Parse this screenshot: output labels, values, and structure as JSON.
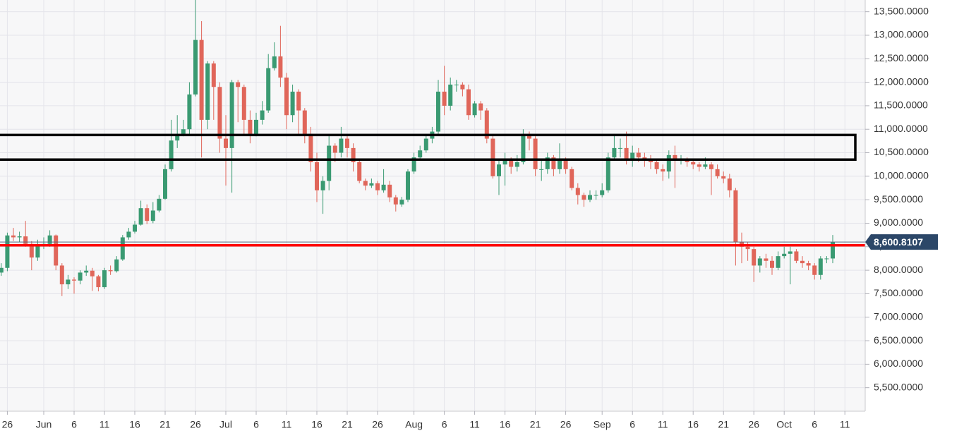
{
  "chart_data": {
    "type": "candlestick",
    "categories": [
      null,
      "26",
      null,
      null,
      null,
      null,
      null,
      "Jun",
      null,
      null,
      null,
      null,
      "6",
      null,
      null,
      null,
      null,
      "11",
      null,
      null,
      null,
      null,
      "16",
      null,
      null,
      null,
      null,
      "21",
      null,
      null,
      null,
      null,
      "26",
      null,
      null,
      null,
      null,
      "Jul",
      null,
      null,
      null,
      null,
      "6",
      null,
      null,
      null,
      null,
      "11",
      null,
      null,
      null,
      null,
      "16",
      null,
      null,
      null,
      null,
      "21",
      null,
      null,
      null,
      null,
      "26",
      null,
      null,
      null,
      null,
      null,
      "Aug",
      null,
      null,
      null,
      null,
      "6",
      null,
      null,
      null,
      null,
      "11",
      null,
      null,
      null,
      null,
      "16",
      null,
      null,
      null,
      null,
      "21",
      null,
      null,
      null,
      null,
      "26",
      null,
      null,
      null,
      null,
      null,
      "Sep",
      null,
      null,
      null,
      null,
      "6",
      null,
      null,
      null,
      null,
      "11",
      null,
      null,
      null,
      null,
      "16",
      null,
      null,
      null,
      null,
      "21",
      null,
      null,
      null,
      null,
      "26",
      null,
      null,
      null,
      null,
      "Oct",
      null,
      null,
      null,
      null,
      "6",
      null,
      null,
      null,
      null,
      "11"
    ],
    "open": [
      7950,
      8050,
      8740,
      8700,
      8720,
      8560,
      8270,
      8550,
      8560,
      8740,
      8100,
      7700,
      7800,
      7780,
      7950,
      7990,
      7870,
      7640,
      8000,
      7980,
      8230,
      8700,
      8820,
      8970,
      9320,
      9050,
      9270,
      9520,
      10150,
      10760,
      10900,
      11000,
      11740,
      12900,
      11200,
      12400,
      11900,
      10800,
      10600,
      12000,
      11900,
      11200,
      10900,
      11200,
      11400,
      12300,
      12550,
      12100,
      11300,
      11800,
      11400,
      10900,
      10300,
      9700,
      9900,
      10650,
      10500,
      10800,
      10600,
      10300,
      9900,
      9800,
      9850,
      9700,
      9820,
      9550,
      9400,
      9500,
      10100,
      10400,
      10550,
      10800,
      10950,
      11800,
      11500,
      11950,
      11950,
      11850,
      11300,
      11550,
      11400,
      10800,
      10000,
      10250,
      10350,
      10200,
      10300,
      10900,
      10800,
      10150,
      10150,
      10400,
      10150,
      10350,
      10150,
      9750,
      9600,
      9500,
      9600,
      9600,
      9700,
      10400,
      10600,
      10600,
      10350,
      10500,
      10400,
      10350,
      10300,
      10150,
      10100,
      10450,
      10350,
      10350,
      10300,
      10250,
      10200,
      10250,
      10150,
      10000,
      9950,
      9700,
      8600,
      8500,
      8450,
      8100,
      8250,
      8200,
      8050,
      8300,
      8350,
      8400,
      8200,
      8150,
      8100,
      7900,
      8250,
      8250,
      null,
      null
    ],
    "high": [
      8150,
      8800,
      8900,
      8820,
      9050,
      8620,
      8650,
      8700,
      8850,
      8760,
      8150,
      7900,
      7850,
      8000,
      8100,
      8050,
      7900,
      8050,
      8100,
      8300,
      8750,
      8900,
      9050,
      9480,
      9400,
      9450,
      9600,
      10250,
      11200,
      11300,
      11200,
      12000,
      13800,
      13300,
      12450,
      12450,
      12000,
      11300,
      12050,
      12050,
      11950,
      11400,
      11350,
      11600,
      12600,
      12850,
      13200,
      12200,
      11950,
      11850,
      11450,
      11050,
      10500,
      10000,
      10900,
      10700,
      11050,
      10900,
      10700,
      10350,
      9950,
      9950,
      9900,
      10150,
      9900,
      9600,
      9560,
      10150,
      10500,
      10650,
      10900,
      11050,
      12050,
      12350,
      12100,
      12050,
      12000,
      11950,
      11600,
      11600,
      11450,
      10900,
      10350,
      10500,
      10400,
      10450,
      11000,
      10950,
      10850,
      10350,
      10500,
      10450,
      10700,
      10400,
      10200,
      9850,
      9650,
      9700,
      9700,
      9850,
      10500,
      10900,
      10800,
      10950,
      10650,
      10600,
      10500,
      10450,
      10350,
      10250,
      10550,
      10650,
      10450,
      10400,
      10350,
      10300,
      10400,
      10300,
      10250,
      10100,
      10050,
      9750,
      8800,
      8600,
      8500,
      8300,
      8350,
      8300,
      8400,
      8500,
      8500,
      8450,
      8300,
      8200,
      8150,
      8300,
      8300,
      8750,
      null,
      null
    ],
    "low": [
      7880,
      7980,
      8620,
      8600,
      8500,
      8000,
      8200,
      8450,
      8500,
      8000,
      7450,
      7600,
      7500,
      7700,
      7880,
      7560,
      7550,
      7600,
      7900,
      7950,
      8200,
      8650,
      8780,
      8950,
      8980,
      9000,
      9230,
      9500,
      10100,
      10600,
      10850,
      10900,
      11700,
      10400,
      11000,
      11200,
      10500,
      9800,
      9650,
      11150,
      10900,
      10700,
      10850,
      11100,
      11350,
      12250,
      11900,
      11000,
      11150,
      10900,
      10700,
      10100,
      9450,
      9200,
      9700,
      10300,
      10400,
      10400,
      10100,
      9850,
      9700,
      9750,
      9600,
      9650,
      9450,
      9250,
      9350,
      9450,
      10050,
      10350,
      10500,
      10700,
      10900,
      11300,
      11400,
      11800,
      11700,
      11200,
      11250,
      11200,
      10700,
      9950,
      9600,
      9800,
      10050,
      10100,
      10250,
      10550,
      10000,
      9900,
      10050,
      10000,
      10050,
      10050,
      9700,
      9400,
      9350,
      9450,
      9500,
      9550,
      9650,
      10350,
      10400,
      10250,
      10200,
      10300,
      10200,
      10150,
      10050,
      9900,
      9950,
      9750,
      10250,
      10200,
      10150,
      10100,
      10150,
      9600,
      9950,
      9850,
      9550,
      8100,
      8150,
      8200,
      7750,
      7950,
      8050,
      7900,
      8000,
      8250,
      7700,
      8150,
      8050,
      8000,
      7800,
      7800,
      8150,
      8150,
      null,
      null
    ],
    "close": [
      8050,
      8740,
      8700,
      8720,
      8560,
      8270,
      8550,
      8560,
      8740,
      8100,
      7700,
      7800,
      7780,
      7950,
      7990,
      7870,
      7640,
      8000,
      7980,
      8230,
      8700,
      8820,
      8970,
      9320,
      9050,
      9270,
      9520,
      10150,
      10760,
      10900,
      11000,
      11740,
      12900,
      11200,
      12400,
      11900,
      10800,
      10600,
      12000,
      11900,
      11200,
      10900,
      11200,
      11400,
      12300,
      12550,
      12100,
      11300,
      11800,
      11400,
      10900,
      10300,
      9700,
      9900,
      10650,
      10500,
      10800,
      10600,
      10300,
      9900,
      9800,
      9850,
      9700,
      9820,
      9550,
      9400,
      9500,
      10100,
      10400,
      10550,
      10800,
      10950,
      11800,
      11500,
      11950,
      11950,
      11850,
      11300,
      11550,
      11400,
      10800,
      10000,
      10250,
      10350,
      10200,
      10300,
      10900,
      10800,
      10150,
      10150,
      10400,
      10150,
      10350,
      10150,
      9750,
      9600,
      9500,
      9600,
      9600,
      9700,
      10400,
      10600,
      10600,
      10350,
      10500,
      10400,
      10350,
      10300,
      10150,
      10100,
      10450,
      10350,
      10350,
      10300,
      10250,
      10200,
      10250,
      10150,
      10000,
      9950,
      9700,
      8600,
      8500,
      8450,
      8100,
      8250,
      8200,
      8050,
      8300,
      8350,
      8400,
      8200,
      8150,
      8100,
      7900,
      8250,
      8250,
      8600.8107,
      null,
      null
    ],
    "up_color": "#3a9a72",
    "down_color": "#e0665a",
    "ylim": [
      5000,
      13750
    ],
    "yticks": [
      {
        "value": 5500,
        "label": "5,500.0000"
      },
      {
        "value": 6000,
        "label": "6,000.0000"
      },
      {
        "value": 6500,
        "label": "6,500.0000"
      },
      {
        "value": 7000,
        "label": "7,000.0000"
      },
      {
        "value": 7500,
        "label": "7,500.0000"
      },
      {
        "value": 8000,
        "label": "8,000.0000"
      },
      {
        "value": 8500,
        "label": "8,500.0000"
      },
      {
        "value": 9000,
        "label": "9,000.0000"
      },
      {
        "value": 9500,
        "label": "9,500.0000"
      },
      {
        "value": 10000,
        "label": "10,000.0000"
      },
      {
        "value": 10500,
        "label": "10,500.0000"
      },
      {
        "value": 11000,
        "label": "11,000.0000"
      },
      {
        "value": 11500,
        "label": "11,500.0000"
      },
      {
        "value": 12000,
        "label": "12,000.0000"
      },
      {
        "value": 12500,
        "label": "12,500.0000"
      },
      {
        "value": 13000,
        "label": "13,000.0000"
      },
      {
        "value": 13500,
        "label": "13,500.0000"
      }
    ],
    "grid": true,
    "last_price": {
      "value": 8600.8107,
      "label": "8,600.8107"
    },
    "horizontal_line": {
      "value": 8530,
      "color": "#ff0000"
    },
    "rectangle": {
      "ylim": [
        10354,
        10878
      ],
      "color": "#000000"
    }
  }
}
